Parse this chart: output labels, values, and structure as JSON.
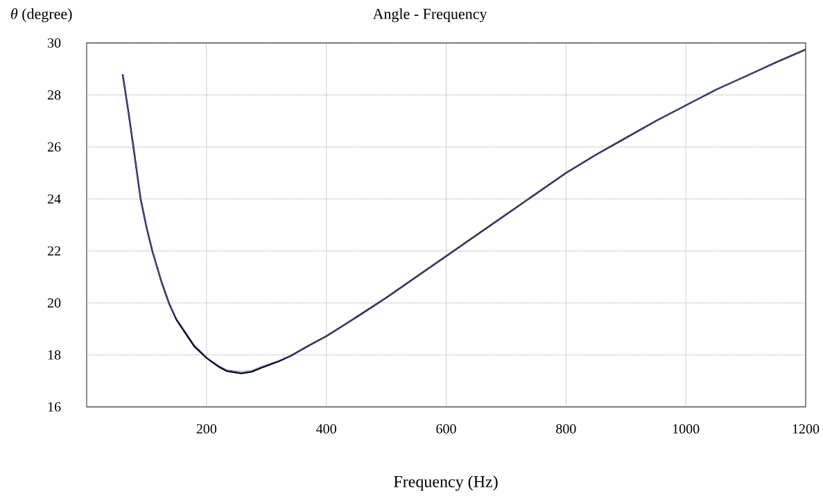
{
  "chart_data": {
    "type": "line",
    "title": "Angle - Frequency",
    "xlabel": "Frequency (Hz)",
    "ylabel": "*θ* (degree)",
    "x": [
      60,
      70,
      78,
      90,
      100,
      110,
      125,
      138,
      150,
      165,
      180,
      201,
      220,
      234,
      258,
      275,
      291,
      320,
      341,
      370,
      400,
      450,
      500,
      550,
      600,
      650,
      700,
      750,
      800,
      850,
      900,
      950,
      1000,
      1050,
      1100,
      1150,
      1200
    ],
    "series": [
      {
        "color": "#000000",
        "values": [
          28.8,
          27.3,
          26.0,
          24.0,
          22.9,
          21.96,
          20.8,
          19.95,
          19.35,
          18.83,
          18.32,
          17.87,
          17.55,
          17.38,
          17.29,
          17.35,
          17.5,
          17.75,
          17.97,
          18.35,
          18.72,
          19.45,
          20.2,
          21.0,
          21.8,
          22.6,
          23.4,
          24.2,
          25.0,
          25.7,
          26.35,
          27.0,
          27.6,
          28.2,
          28.72,
          29.25,
          29.75
        ]
      },
      {
        "color": "#6b6bff",
        "values": [
          28.8,
          27.3,
          26.0,
          24.0,
          22.9,
          21.96,
          20.8,
          19.95,
          19.4,
          18.9,
          18.38,
          17.9,
          17.6,
          17.42,
          17.36,
          17.4,
          17.55,
          17.78,
          17.98,
          18.35,
          18.72,
          19.45,
          20.2,
          21.0,
          21.8,
          22.6,
          23.4,
          24.2,
          25.0,
          25.7,
          26.35,
          27.0,
          27.6,
          28.2,
          28.72,
          29.25,
          29.75
        ]
      }
    ],
    "xlim": [
      0,
      1200
    ],
    "ylim": [
      16,
      30
    ],
    "xticks": [
      200,
      400,
      600,
      800,
      1000,
      1200
    ],
    "yticks": [
      16,
      18,
      20,
      22,
      24,
      26,
      28,
      30
    ],
    "grid": true
  }
}
